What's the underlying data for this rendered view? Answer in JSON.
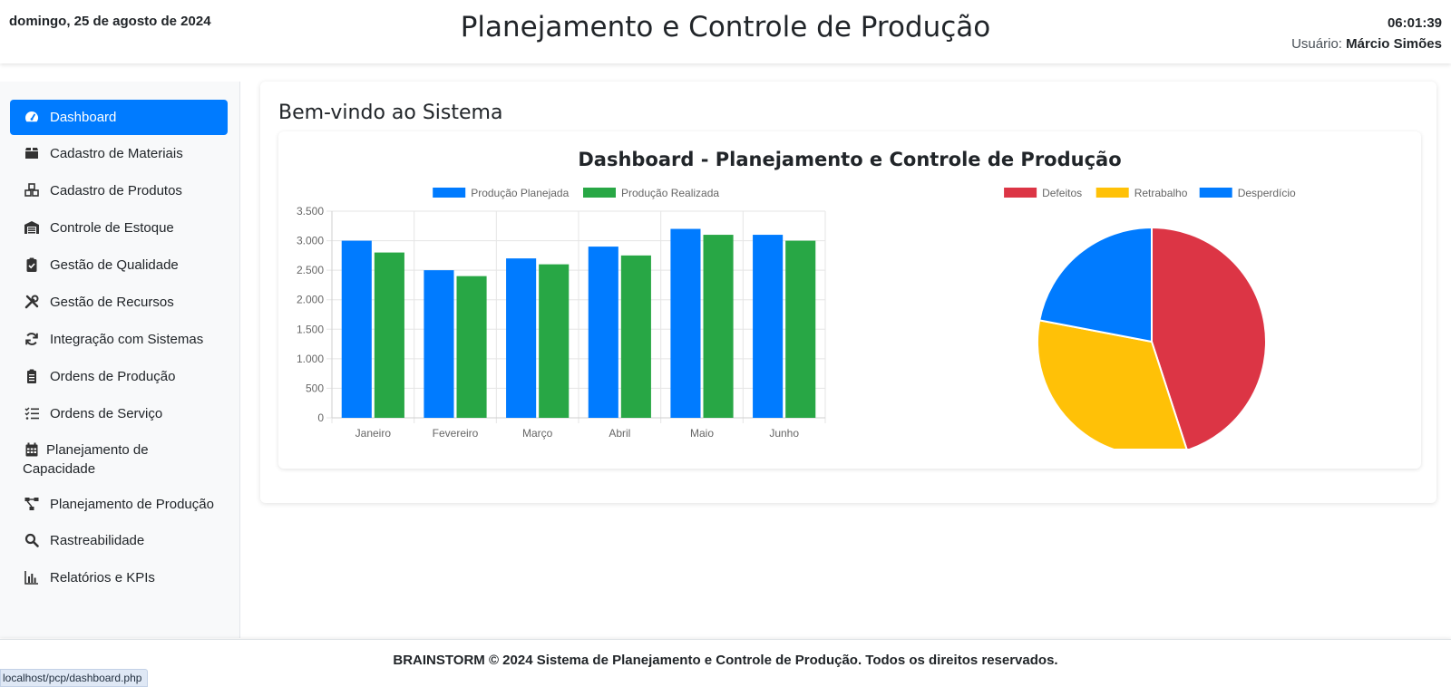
{
  "header": {
    "date": "domingo, 25 de agosto de 2024",
    "title": "Planejamento e Controle de Produção",
    "time": "06:01:39",
    "user_label": "Usuário:",
    "user_name": "Márcio Simões"
  },
  "sidebar": {
    "items": [
      {
        "label": "Dashboard",
        "icon": "dashboard-icon",
        "active": true
      },
      {
        "label": "Cadastro de Materiais",
        "icon": "box-icon"
      },
      {
        "label": "Cadastro de Produtos",
        "icon": "cubes-icon"
      },
      {
        "label": "Controle de Estoque",
        "icon": "warehouse-icon"
      },
      {
        "label": "Gestão de Qualidade",
        "icon": "clipboard-check-icon"
      },
      {
        "label": "Gestão de Recursos",
        "icon": "tools-icon"
      },
      {
        "label": "Integração com Sistemas",
        "icon": "sync-icon"
      },
      {
        "label": "Ordens de Produção",
        "icon": "clipboard-list-icon"
      },
      {
        "label": "Ordens de Serviço",
        "icon": "tasks-icon"
      },
      {
        "label": "Planejamento de Capacidade",
        "icon": "calendar-icon"
      },
      {
        "label": "Planejamento de Produção",
        "icon": "project-diagram-icon"
      },
      {
        "label": "Rastreabilidade",
        "icon": "search-icon"
      },
      {
        "label": "Relatórios e KPIs",
        "icon": "chart-bar-icon"
      }
    ]
  },
  "main": {
    "welcome": "Bem-vindo ao Sistema",
    "dashboard_title": "Dashboard - Planejamento e Controle de Produção"
  },
  "colors": {
    "primary": "#007bff",
    "success": "#28a745",
    "danger": "#dc3545",
    "warning": "#ffc107"
  },
  "chart_data": [
    {
      "type": "bar",
      "categories": [
        "Janeiro",
        "Fevereiro",
        "Março",
        "Abril",
        "Maio",
        "Junho"
      ],
      "series": [
        {
          "name": "Produção Planejada",
          "values": [
            3000,
            2500,
            2700,
            2900,
            3200,
            3100
          ],
          "color": "#007bff"
        },
        {
          "name": "Produção Realizada",
          "values": [
            2800,
            2400,
            2600,
            2750,
            3100,
            3000
          ],
          "color": "#28a745"
        }
      ],
      "ylim": [
        0,
        3500
      ],
      "yticks": [
        0,
        500,
        1000,
        1500,
        2000,
        2500,
        3000,
        3500
      ],
      "ytick_labels": [
        "0",
        "500",
        "1.000",
        "1.500",
        "2.000",
        "2.500",
        "3.000",
        "3.500"
      ],
      "grid": true,
      "legend": "top"
    },
    {
      "type": "pie",
      "labels": [
        "Defeitos",
        "Retrabalho",
        "Desperdício"
      ],
      "values": [
        45,
        33,
        22
      ],
      "colors": [
        "#dc3545",
        "#ffc107",
        "#007bff"
      ],
      "legend": "top"
    }
  ],
  "footer": {
    "copyright": "BRAINSTORM © 2024 Sistema de Planejamento e Controle de Produção. Todos os direitos reservados."
  },
  "status_bar": {
    "url": "localhost/pcp/dashboard.php"
  }
}
